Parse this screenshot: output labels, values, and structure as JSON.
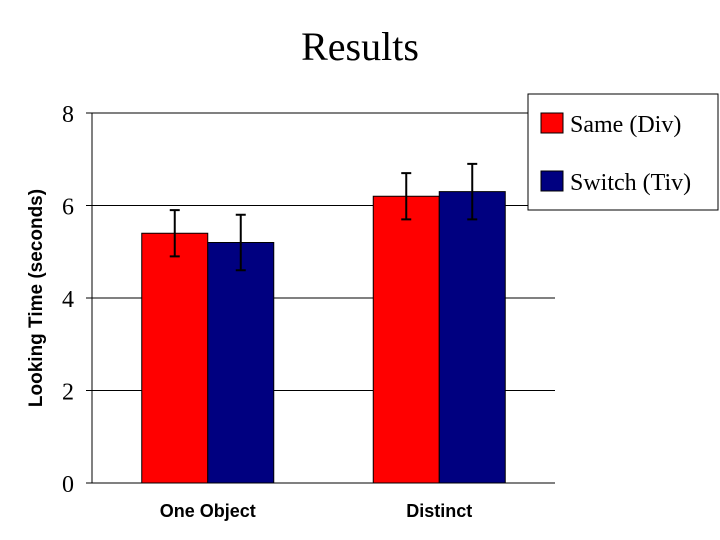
{
  "chart_data": {
    "type": "bar",
    "title": "Results",
    "ylabel": "Looking Time (seconds)",
    "xlabel": "",
    "categories": [
      "One Object",
      "Distinct"
    ],
    "ylim": [
      0,
      8
    ],
    "yticks": [
      0,
      2,
      4,
      6,
      8
    ],
    "grid": true,
    "legend_position": "top-right",
    "series": [
      {
        "name": "Same (Div)",
        "color": "#ff0000",
        "values": [
          5.4,
          6.2
        ],
        "error": [
          0.5,
          0.5
        ]
      },
      {
        "name": "Switch (Tiv)",
        "color": "#000080",
        "values": [
          5.2,
          6.3
        ],
        "error": [
          0.6,
          0.6
        ]
      }
    ]
  }
}
